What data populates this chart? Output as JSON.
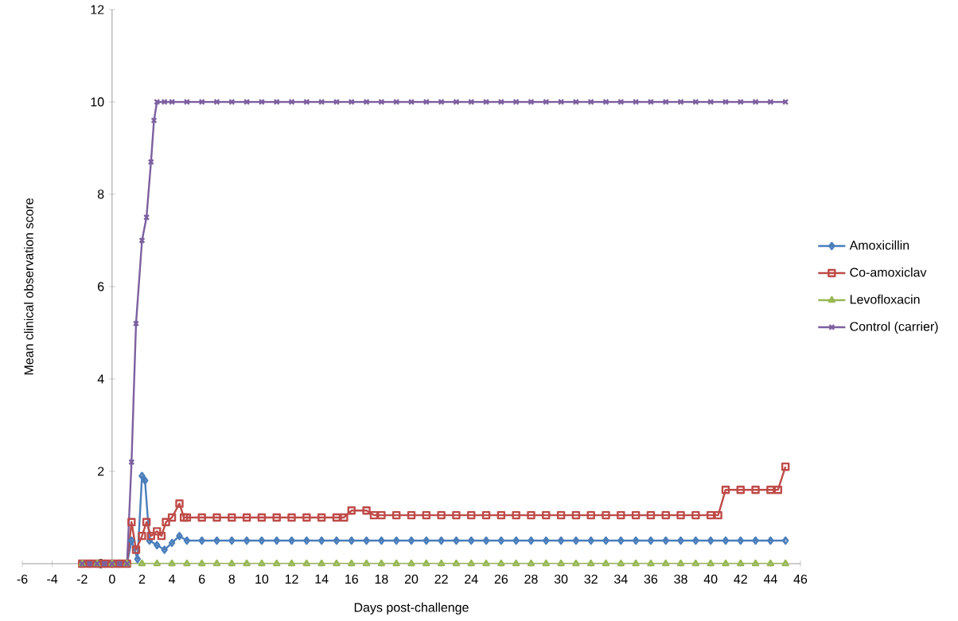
{
  "chart_data": {
    "type": "line",
    "xlabel": "Days post-challenge",
    "ylabel": "Mean clinical observation score",
    "xlim": [
      -6,
      46
    ],
    "xticks": [
      -6,
      -4,
      -2,
      0,
      2,
      4,
      6,
      8,
      10,
      12,
      14,
      16,
      18,
      20,
      22,
      24,
      26,
      28,
      30,
      32,
      34,
      36,
      38,
      40,
      42,
      44,
      46
    ],
    "ylim": [
      0,
      12
    ],
    "yticks": [
      0,
      2,
      4,
      6,
      8,
      10,
      12
    ],
    "grid": false,
    "legend": "right",
    "line_style": "solid",
    "series": [
      {
        "name": "Amoxicillin",
        "color": "#4a7ebb",
        "marker": "diamond",
        "x": [
          -2,
          -1.5,
          -1,
          -0.5,
          0,
          0.5,
          1,
          1.3,
          1.7,
          2,
          2.2,
          2.5,
          3,
          3.5,
          4,
          4.5,
          5,
          6,
          7,
          8,
          9,
          10,
          11,
          12,
          13,
          14,
          15,
          16,
          17,
          18,
          19,
          20,
          21,
          22,
          23,
          24,
          25,
          26,
          27,
          28,
          29,
          30,
          31,
          32,
          33,
          34,
          35,
          36,
          37,
          38,
          39,
          40,
          41,
          42,
          43,
          44,
          45
        ],
        "values": [
          0,
          0,
          0,
          0,
          0,
          0,
          0,
          0.5,
          0.1,
          1.9,
          1.8,
          0.5,
          0.4,
          0.3,
          0.45,
          0.6,
          0.5,
          0.5,
          0.5,
          0.5,
          0.5,
          0.5,
          0.5,
          0.5,
          0.5,
          0.5,
          0.5,
          0.5,
          0.5,
          0.5,
          0.5,
          0.5,
          0.5,
          0.5,
          0.5,
          0.5,
          0.5,
          0.5,
          0.5,
          0.5,
          0.5,
          0.5,
          0.5,
          0.5,
          0.5,
          0.5,
          0.5,
          0.5,
          0.5,
          0.5,
          0.5,
          0.5,
          0.5,
          0.5,
          0.5,
          0.5,
          0.5
        ]
      },
      {
        "name": "Co-amoxiclav",
        "color": "#be4b48",
        "marker": "square",
        "x": [
          -2,
          -1.5,
          -1,
          -0.5,
          0,
          0.5,
          1,
          1.3,
          1.6,
          2,
          2.3,
          2.6,
          3,
          3.3,
          3.6,
          4,
          4.5,
          4.8,
          5,
          6,
          7,
          8,
          9,
          10,
          11,
          12,
          13,
          14,
          15,
          15.5,
          16,
          17,
          17.5,
          18,
          19,
          20,
          21,
          22,
          23,
          24,
          25,
          26,
          27,
          28,
          29,
          30,
          31,
          32,
          33,
          34,
          35,
          36,
          37,
          38,
          39,
          40,
          40.5,
          41,
          42,
          43,
          44,
          44.5,
          45
        ],
        "values": [
          0,
          0,
          0,
          0,
          0,
          0,
          0,
          0.9,
          0.3,
          0.6,
          0.9,
          0.6,
          0.7,
          0.6,
          0.9,
          1.0,
          1.3,
          1.0,
          1.0,
          1.0,
          1.0,
          1.0,
          1.0,
          1.0,
          1.0,
          1.0,
          1.0,
          1.0,
          1.0,
          1.0,
          1.15,
          1.15,
          1.05,
          1.05,
          1.05,
          1.05,
          1.05,
          1.05,
          1.05,
          1.05,
          1.05,
          1.05,
          1.05,
          1.05,
          1.05,
          1.05,
          1.05,
          1.05,
          1.05,
          1.05,
          1.05,
          1.05,
          1.05,
          1.05,
          1.05,
          1.05,
          1.05,
          1.6,
          1.6,
          1.6,
          1.6,
          1.6,
          2.1
        ]
      },
      {
        "name": "Levofloxacin",
        "color": "#98b954",
        "marker": "triangle",
        "x": [
          -2,
          -1,
          0,
          1,
          2,
          3,
          4,
          5,
          6,
          7,
          8,
          9,
          10,
          11,
          12,
          13,
          14,
          15,
          16,
          17,
          18,
          19,
          20,
          21,
          22,
          23,
          24,
          25,
          26,
          27,
          28,
          29,
          30,
          31,
          32,
          33,
          34,
          35,
          36,
          37,
          38,
          39,
          40,
          41,
          42,
          43,
          44,
          45
        ],
        "values": [
          0,
          0,
          0,
          0,
          0,
          0,
          0,
          0,
          0,
          0,
          0,
          0,
          0,
          0,
          0,
          0,
          0,
          0,
          0,
          0,
          0,
          0,
          0,
          0,
          0,
          0,
          0,
          0,
          0,
          0,
          0,
          0,
          0,
          0,
          0,
          0,
          0,
          0,
          0,
          0,
          0,
          0,
          0,
          0,
          0,
          0,
          0,
          0
        ]
      },
      {
        "name": "Control (carrier)",
        "color": "#7d60a0",
        "marker": "cross",
        "x": [
          -2,
          -1.5,
          -1,
          -0.5,
          0,
          0.5,
          1,
          1.3,
          1.6,
          2,
          2.3,
          2.6,
          2.8,
          3,
          3.5,
          4,
          5,
          6,
          7,
          8,
          9,
          10,
          11,
          12,
          13,
          14,
          15,
          16,
          17,
          18,
          19,
          20,
          21,
          22,
          23,
          24,
          25,
          26,
          27,
          28,
          29,
          30,
          31,
          32,
          33,
          34,
          35,
          36,
          37,
          38,
          39,
          40,
          41,
          42,
          43,
          44,
          45
        ],
        "values": [
          0,
          0,
          0,
          0,
          0,
          0,
          0,
          2.2,
          5.2,
          7.0,
          7.5,
          8.7,
          9.6,
          10,
          10,
          10,
          10,
          10,
          10,
          10,
          10,
          10,
          10,
          10,
          10,
          10,
          10,
          10,
          10,
          10,
          10,
          10,
          10,
          10,
          10,
          10,
          10,
          10,
          10,
          10,
          10,
          10,
          10,
          10,
          10,
          10,
          10,
          10,
          10,
          10,
          10,
          10,
          10,
          10,
          10,
          10,
          10
        ]
      }
    ]
  }
}
